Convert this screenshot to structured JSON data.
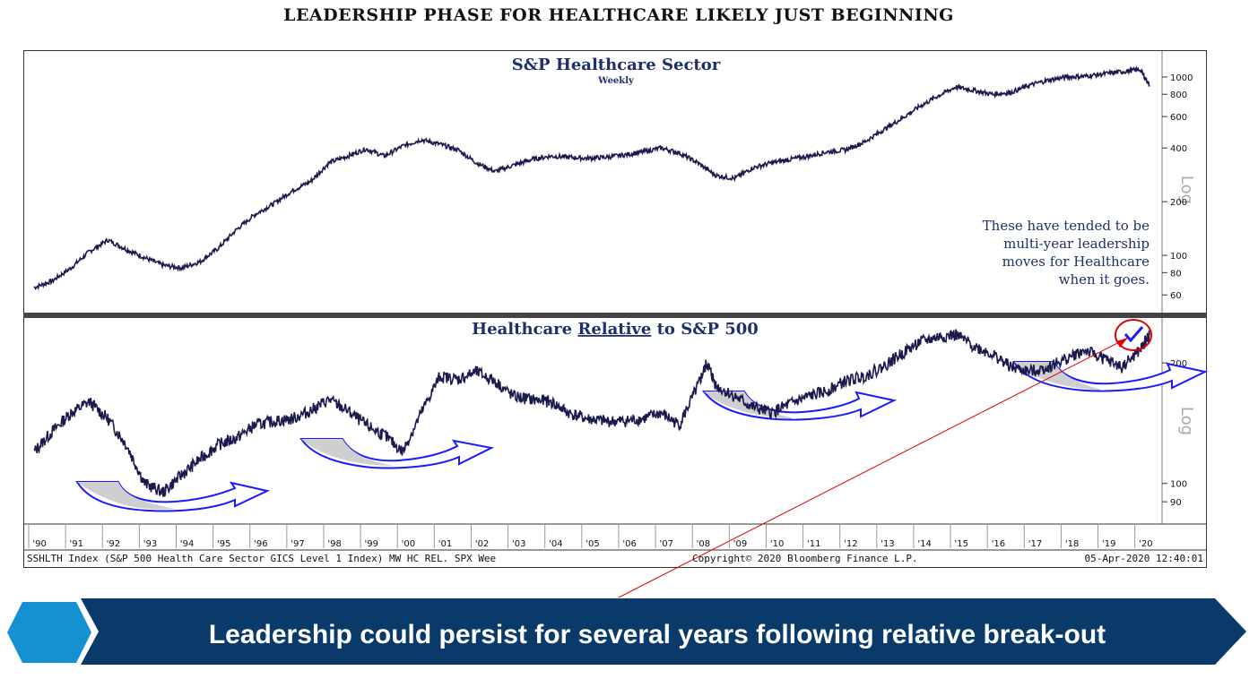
{
  "slide_title": "LEADERSHIP PHASE FOR HEALTHCARE LIKELY JUST BEGINNING",
  "banner": {
    "text": "Leadership could persist for several years following relative break-out"
  },
  "colors": {
    "line": "#1a1a4e",
    "title": "#1f2f6b",
    "arrow": "#1a1aff",
    "shade": "#cfcfcf",
    "callout": "#e00000",
    "banner": "#0a3a6a",
    "hexagon": "#1590d0"
  },
  "chart_data": [
    {
      "type": "line",
      "title": "S&P Healthcare Sector",
      "subtitle": "Weekly",
      "y_scale": "log",
      "y_axis_label": "Log",
      "y_ticks": [
        60,
        80,
        100,
        200,
        400,
        600,
        800,
        1000
      ],
      "ylim": [
        50,
        1350
      ],
      "annotation": [
        "These have tended to be",
        "multi-year leadership",
        "moves for Healthcare",
        "when it goes."
      ],
      "series": [
        {
          "x": [
            1990,
            1990.5,
            1991,
            1991.5,
            1992,
            1992.5,
            1993,
            1993.5,
            1994,
            1994.5,
            1995,
            1995.5,
            1996,
            1996.5,
            1997,
            1997.5,
            1998,
            1998.5,
            1999,
            1999.5,
            2000,
            2000.5,
            2001,
            2001.5,
            2002,
            2002.5,
            2003,
            2003.5,
            2004,
            2004.5,
            2005,
            2005.5,
            2006,
            2006.5,
            2007,
            2007.5,
            2008,
            2008.5,
            2009,
            2009.5,
            2010,
            2010.5,
            2011,
            2011.5,
            2012,
            2012.5,
            2013,
            2013.5,
            2014,
            2014.5,
            2015,
            2015.5,
            2016,
            2016.5,
            2017,
            2017.5,
            2018,
            2018.5,
            2019,
            2019.5,
            2020,
            2020.25
          ],
          "y": [
            66,
            72,
            85,
            105,
            122,
            108,
            97,
            88,
            85,
            92,
            110,
            140,
            170,
            195,
            230,
            260,
            330,
            360,
            395,
            360,
            410,
            445,
            420,
            390,
            330,
            295,
            320,
            345,
            360,
            355,
            350,
            355,
            365,
            380,
            400,
            375,
            330,
            280,
            270,
            310,
            330,
            345,
            360,
            380,
            390,
            430,
            500,
            580,
            680,
            780,
            880,
            840,
            800,
            820,
            900,
            960,
            1000,
            1010,
            1040,
            1070,
            1100,
            900
          ]
        }
      ]
    },
    {
      "type": "line",
      "title": "Healthcare Relative to S&P 500",
      "y_scale": "log",
      "y_axis_label": "Log",
      "y_ticks": [
        90,
        100,
        200
      ],
      "ylim": [
        80,
        255
      ],
      "x_tick_labels": [
        "'90",
        "'91",
        "'92",
        "'93",
        "'94",
        "'95",
        "'96",
        "'97",
        "'98",
        "'99",
        "'00",
        "'01",
        "'02",
        "'03",
        "'04",
        "'05",
        "'06",
        "'07",
        "'08",
        "'09",
        "'10",
        "'11",
        "'12",
        "'13",
        "'14",
        "'15",
        "'16",
        "'17",
        "'18",
        "'19",
        "'20"
      ],
      "series": [
        {
          "x": [
            1990,
            1990.5,
            1991,
            1991.5,
            1992,
            1992.5,
            1993,
            1993.5,
            1994,
            1994.5,
            1995,
            1995.5,
            1996,
            1996.5,
            1997,
            1997.5,
            1998,
            1998.5,
            1999,
            1999.5,
            2000,
            2000.5,
            2001,
            2001.5,
            2002,
            2002.5,
            2003,
            2003.5,
            2004,
            2004.5,
            2005,
            2005.5,
            2006,
            2006.5,
            2007,
            2007.5,
            2008,
            2008.25,
            2008.5,
            2009,
            2009.5,
            2010,
            2010.5,
            2011,
            2011.5,
            2012,
            2012.5,
            2013,
            2013.5,
            2014,
            2014.5,
            2015,
            2015.5,
            2016,
            2016.5,
            2017,
            2017.5,
            2018,
            2018.5,
            2019,
            2019.5,
            2020,
            2020.25
          ],
          "y": [
            120,
            135,
            150,
            160,
            145,
            125,
            100,
            95,
            105,
            115,
            125,
            130,
            140,
            143,
            145,
            152,
            162,
            152,
            140,
            132,
            120,
            150,
            185,
            182,
            190,
            180,
            165,
            162,
            160,
            150,
            145,
            143,
            143,
            145,
            150,
            140,
            175,
            200,
            175,
            165,
            155,
            150,
            158,
            165,
            170,
            180,
            185,
            195,
            210,
            225,
            232,
            235,
            220,
            210,
            195,
            190,
            195,
            205,
            215,
            205,
            195,
            215,
            235
          ]
        }
      ]
    }
  ],
  "footer": {
    "left": "SSHLTH Index (S&P 500 Health Care Sector GICS Level 1 Index) MW HC REL. SPX  Wee",
    "center": "Copyright© 2020 Bloomberg Finance L.P.",
    "right": "05-Apr-2020 12:40:01"
  }
}
